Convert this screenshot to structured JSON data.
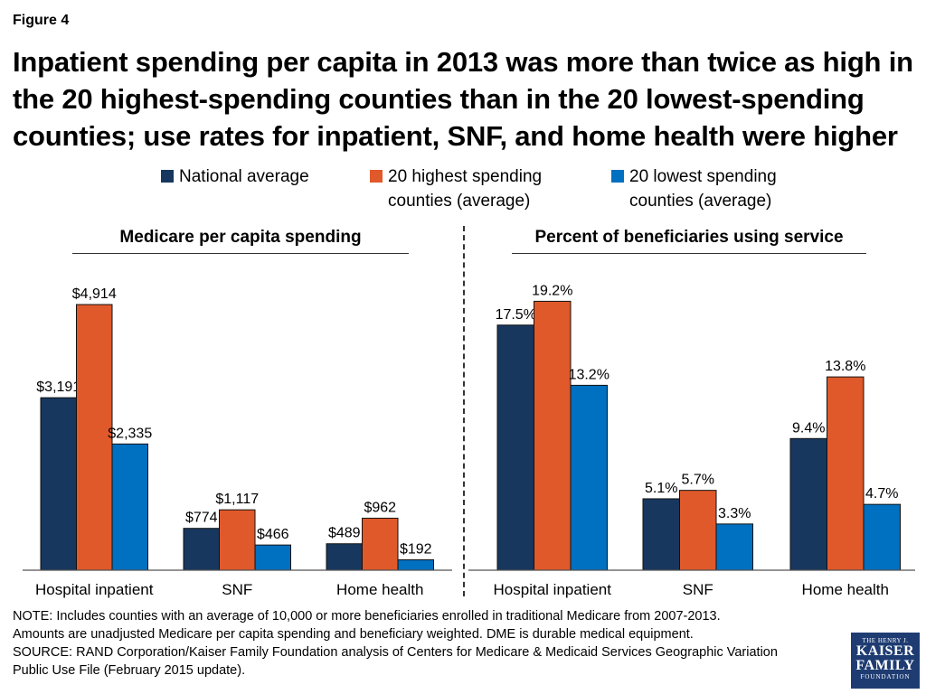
{
  "figure_label": "Figure 4",
  "title": "Inpatient spending per capita in 2013 was more than twice as high in the 20 highest-spending counties than in the 20 lowest-spending counties; use rates for inpatient, SNF, and home health were higher",
  "legend": [
    {
      "label_line1": "National average",
      "label_line2": "",
      "color": "#17375e"
    },
    {
      "label_line1": "20 highest spending",
      "label_line2": "counties (average)",
      "color": "#e0592a"
    },
    {
      "label_line1": "20 lowest spending",
      "label_line2": "counties (average)",
      "color": "#0070c0"
    }
  ],
  "chart_data": [
    {
      "type": "bar",
      "title": "Medicare per capita spending",
      "categories": [
        "Hospital inpatient",
        "SNF",
        "Home health"
      ],
      "series": [
        {
          "name": "National average",
          "values": [
            3191,
            774,
            489
          ],
          "labels": [
            "$3,191",
            "$774",
            "$489"
          ],
          "color": "#17375e"
        },
        {
          "name": "20 highest spending counties (average)",
          "values": [
            4914,
            1117,
            962
          ],
          "labels": [
            "$4,914",
            "$1,117",
            "$962"
          ],
          "color": "#e0592a"
        },
        {
          "name": "20 lowest spending counties (average)",
          "values": [
            2335,
            466,
            192
          ],
          "labels": [
            "$2,335",
            "$466",
            "$192"
          ],
          "color": "#0070c0"
        }
      ],
      "ylim": [
        0,
        5700
      ]
    },
    {
      "type": "bar",
      "title": "Percent of beneficiaries using service",
      "categories": [
        "Hospital inpatient",
        "SNF",
        "Home health"
      ],
      "series": [
        {
          "name": "National average",
          "values": [
            17.5,
            5.1,
            9.4
          ],
          "labels": [
            "17.5%",
            "5.1%",
            "9.4%"
          ],
          "color": "#17375e"
        },
        {
          "name": "20 highest spending counties (average)",
          "values": [
            19.2,
            5.7,
            13.8
          ],
          "labels": [
            "19.2%",
            "5.7%",
            "13.8%"
          ],
          "color": "#e0592a"
        },
        {
          "name": "20 lowest spending counties (average)",
          "values": [
            13.2,
            3.3,
            4.7
          ],
          "labels": [
            "13.2%",
            "3.3%",
            "4.7%"
          ],
          "color": "#0070c0"
        }
      ],
      "ylim": [
        0,
        22
      ]
    }
  ],
  "note_line1": "NOTE: Includes counties with an average of 10,000 or more beneficiaries enrolled in traditional Medicare from 2007-2013.",
  "note_line2": "Amounts are unadjusted Medicare per capita spending and beneficiary weighted. DME is durable medical equipment.",
  "source_line1": "SOURCE: RAND Corporation/Kaiser Family Foundation analysis of Centers for Medicare & Medicaid Services Geographic Variation",
  "source_line2": "Public Use File (February 2015 update).",
  "logo": {
    "line1": "THE HENRY J.",
    "line2": "KAISER",
    "line3": "FAMILY",
    "line4": "FOUNDATION"
  }
}
